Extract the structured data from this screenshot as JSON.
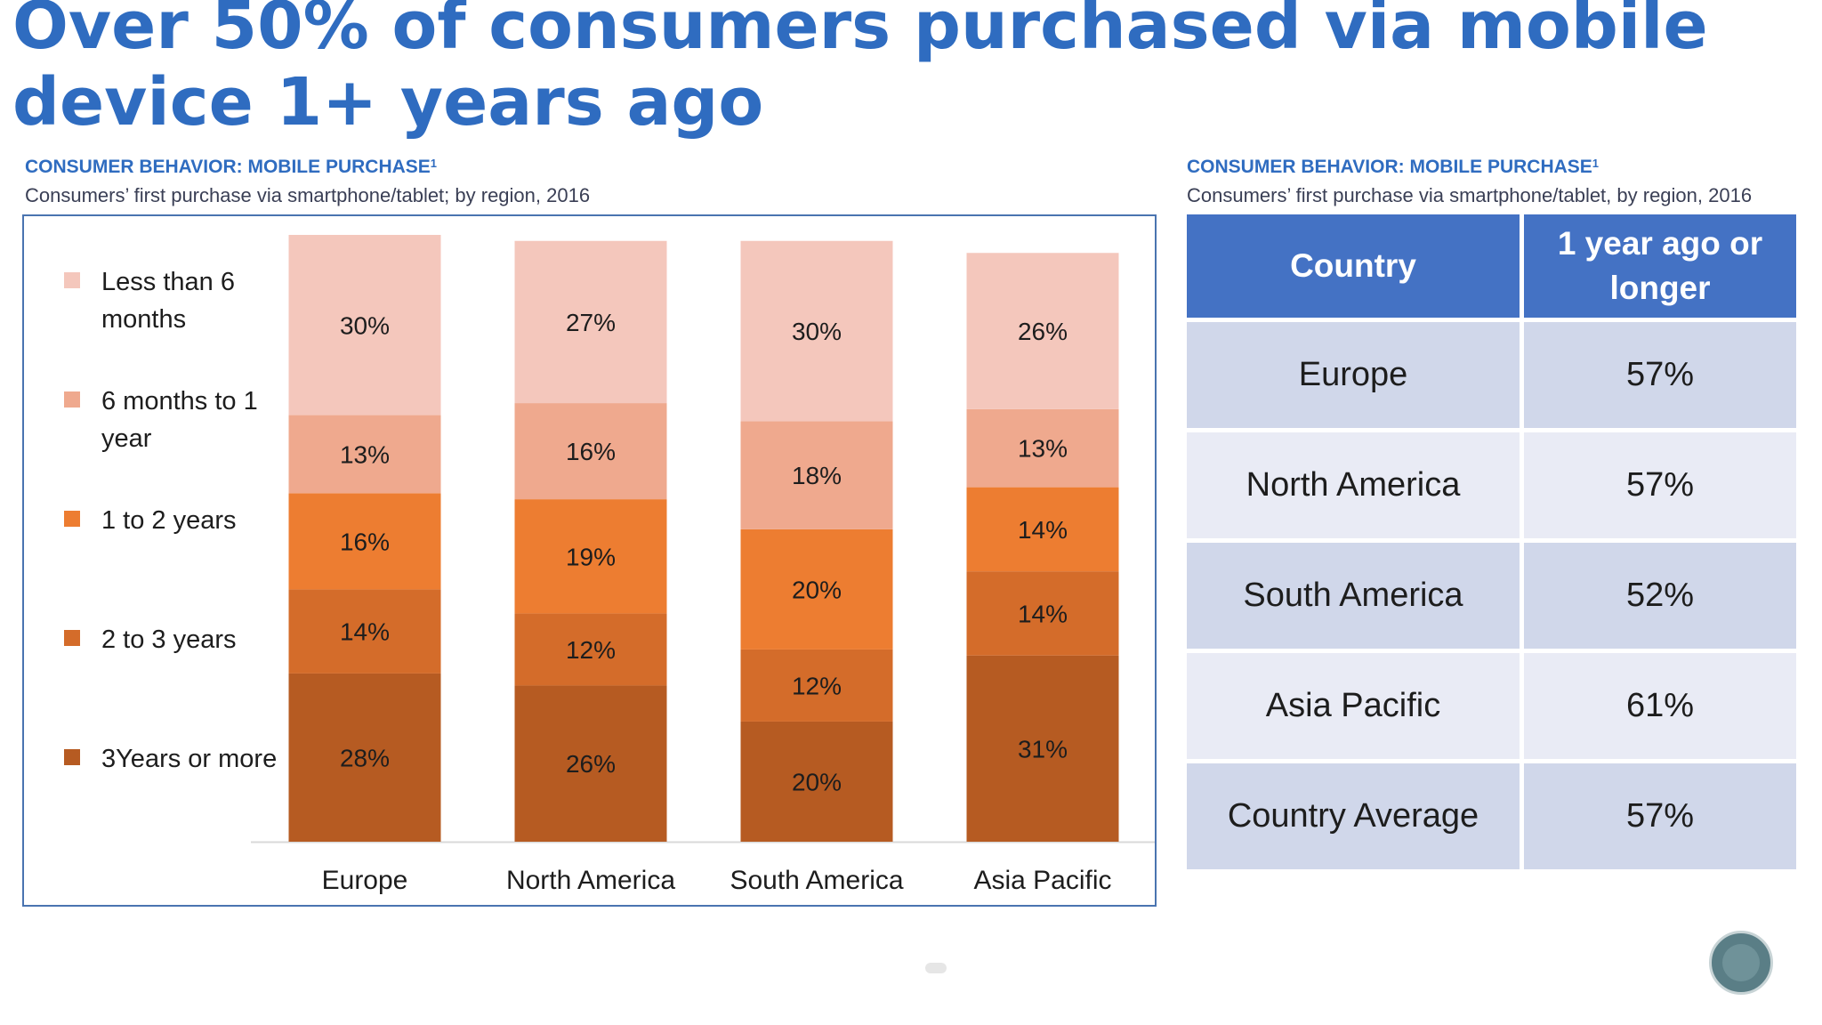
{
  "title": "Over 50% of consumers purchased via mobile device 1+ years ago",
  "left_panel": {
    "heading": "CONSUMER BEHAVIOR: MOBILE PURCHASE",
    "heading_sup": "1",
    "subheading": "Consumers’ first purchase via smartphone/tablet; by region, 2016"
  },
  "right_panel": {
    "heading": "CONSUMER BEHAVIOR: MOBILE PURCHASE",
    "heading_sup": "1",
    "subheading": "Consumers’ first purchase via smartphone/tablet, by region, 2016"
  },
  "colors": {
    "less_than_6_months": "#F4C7BC",
    "six_months_to_1_year": "#EFA98E",
    "one_to_2_years": "#ED7D31",
    "two_to_3_years": "#D46C2A",
    "three_years_or_more": "#B65B22",
    "accent": "#2F6CC0",
    "table_header": "#4472C4"
  },
  "chart_data": {
    "type": "bar",
    "stacked": true,
    "categories": [
      "Europe",
      "North America",
      "South America",
      "Asia Pacific"
    ],
    "series": [
      {
        "name": "3Years or more",
        "values": [
          28,
          26,
          20,
          31
        ],
        "labels": [
          "28%",
          "26%",
          "20%",
          "31%"
        ],
        "color": "#B65B22"
      },
      {
        "name": "2 to 3 years",
        "values": [
          14,
          12,
          12,
          14
        ],
        "labels": [
          "14%",
          "12%",
          "12%",
          "14%"
        ],
        "color": "#D46C2A"
      },
      {
        "name": "1 to 2 years",
        "values": [
          16,
          19,
          20,
          14
        ],
        "labels": [
          "16%",
          "19%",
          "20%",
          "14%"
        ],
        "color": "#ED7D31"
      },
      {
        "name": "6 months to 1 year",
        "values": [
          13,
          16,
          18,
          13
        ],
        "labels": [
          "13%",
          "16%",
          "18%",
          "13%"
        ],
        "color": "#EFA98E"
      },
      {
        "name": "Less than 6 months",
        "values": [
          30,
          27,
          30,
          26
        ],
        "labels": [
          "30%",
          "27%",
          "30%",
          "26%"
        ],
        "color": "#F4C7BC"
      }
    ],
    "legend": [
      {
        "label": "Less than 6 months",
        "color": "#F4C7BC"
      },
      {
        "label": "6 months to 1 year",
        "color": "#EFA98E"
      },
      {
        "label": "1 to 2 years",
        "color": "#ED7D31"
      },
      {
        "label": "2 to 3 years",
        "color": "#D46C2A"
      },
      {
        "label": "3Years or more",
        "color": "#B65B22"
      }
    ],
    "legend_position": "left",
    "ylim": [
      0,
      101
    ],
    "grid": false
  },
  "table": {
    "headers": [
      "Country",
      "1 year ago or longer"
    ],
    "rows": [
      [
        "Europe",
        "57%"
      ],
      [
        "North America",
        "57%"
      ],
      [
        "South America",
        "52%"
      ],
      [
        "Asia Pacific",
        "61%"
      ],
      [
        "Country Average",
        "57%"
      ]
    ]
  }
}
